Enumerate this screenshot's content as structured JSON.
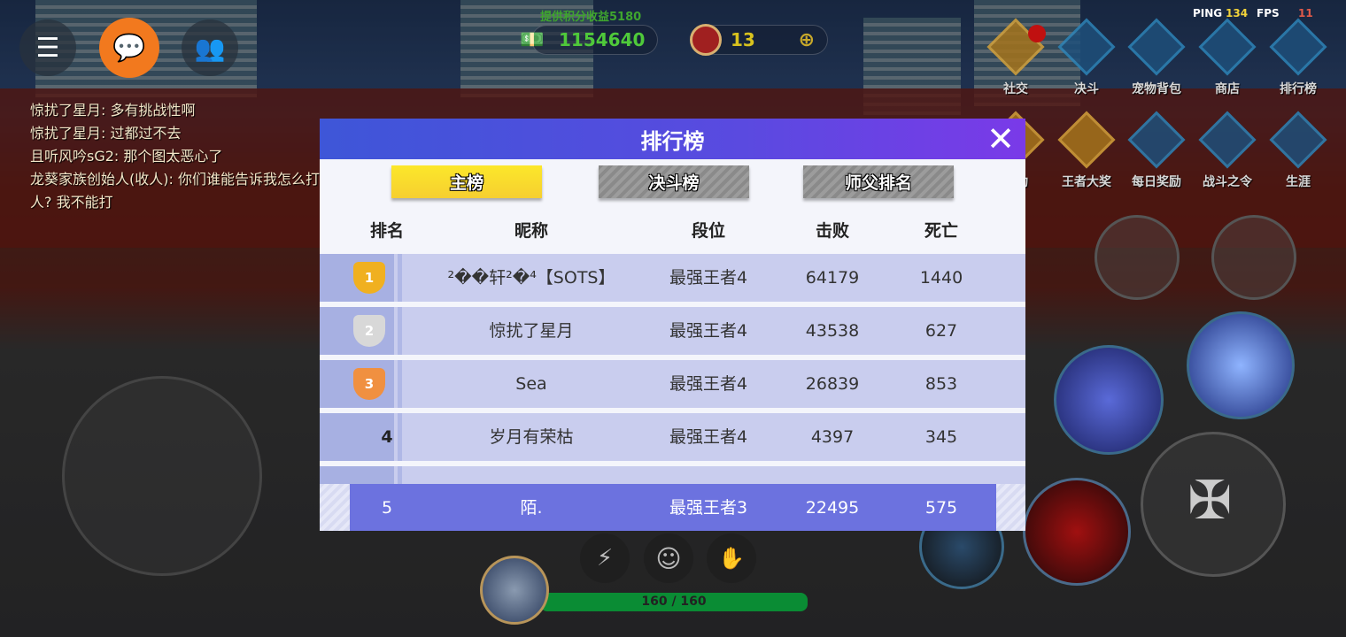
{
  "top_left": {
    "menu_icon": "list-icon",
    "chat_icon": "chat-bubble-icon",
    "friends_icon": "friends-icon"
  },
  "chat_messages": [
    "惊扰了星月: 多有挑战性啊",
    "惊扰了星月: 过都过不去",
    "且听风吟sG2: 那个图太恶心了",
    "龙葵家族创始人(收人): 你们谁能告诉我怎么打到",
    "人? 我不能打"
  ],
  "currency": {
    "label": "提供积分收益5180",
    "money": "1154640",
    "tokens": "13"
  },
  "hud": {
    "ping_label": "PING",
    "ping": "134",
    "fps_label": "FPS",
    "fps": "11",
    "ping_color": "#f2d33a",
    "fps_color": "#e05a4a"
  },
  "menu_row1": [
    "社交",
    "决斗",
    "宠物背包",
    "商店",
    "排行榜"
  ],
  "menu_row2": [
    "活动",
    "王者大奖",
    "每日奖励",
    "战斗之令",
    "生涯"
  ],
  "leaderboard": {
    "title": "排行榜",
    "tabs": [
      "主榜",
      "决斗榜",
      "师父排名"
    ],
    "active_tab": "主榜",
    "columns": [
      "排名",
      "昵称",
      "段位",
      "击败",
      "死亡"
    ],
    "rows": [
      {
        "rank": "1",
        "name": "²��轩²�⁴【SOTS】",
        "tier": "最强王者4",
        "kills": "64179",
        "deaths": "1440"
      },
      {
        "rank": "2",
        "name": "惊扰了星月",
        "tier": "最强王者4",
        "kills": "43538",
        "deaths": "627"
      },
      {
        "rank": "3",
        "name": "Sea",
        "tier": "最强王者4",
        "kills": "26839",
        "deaths": "853"
      },
      {
        "rank": "4",
        "name": "岁月有荣枯",
        "tier": "最强王者4",
        "kills": "4397",
        "deaths": "345"
      }
    ],
    "self": {
      "rank": "5",
      "name": "陌.",
      "tier": "最强王者3",
      "kills": "22495",
      "deaths": "575"
    },
    "accent": "#6c72df"
  },
  "player": {
    "hp": "160 / 160",
    "hp_fraction": 1.0
  },
  "quick_actions": [
    "lightning-chat-icon",
    "smiley-icon",
    "wave-emote-icon"
  ]
}
